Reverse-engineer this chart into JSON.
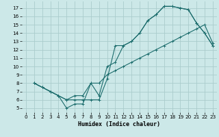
{
  "xlabel": "Humidex (Indice chaleur)",
  "background_color": "#cce8e8",
  "grid_color": "#aacccc",
  "line_color": "#1a6b6b",
  "xlim": [
    -0.5,
    23.5
  ],
  "ylim": [
    4.5,
    17.8
  ],
  "xticks": [
    0,
    1,
    2,
    3,
    4,
    5,
    6,
    7,
    8,
    9,
    10,
    11,
    12,
    13,
    14,
    15,
    16,
    17,
    18,
    19,
    20,
    21,
    22,
    23
  ],
  "yticks": [
    5,
    6,
    7,
    8,
    9,
    10,
    11,
    12,
    13,
    14,
    15,
    16,
    17
  ],
  "line1_x": [
    1,
    2,
    3,
    4,
    5,
    6,
    7,
    8,
    9,
    10,
    11,
    12,
    13,
    14,
    15,
    16,
    17,
    18,
    19,
    20,
    21,
    22,
    23
  ],
  "line1_y": [
    8,
    7.5,
    7,
    6.5,
    6,
    6,
    6,
    6,
    6,
    8.5,
    12.5,
    12.5,
    13,
    14,
    15.5,
    16.2,
    17.2,
    17.2,
    17.0,
    16.8,
    15.2,
    14.0,
    12.5
  ],
  "line2_x": [
    1,
    2,
    3,
    4,
    5,
    6,
    7,
    8,
    9,
    10,
    11,
    12,
    13,
    14,
    15,
    16,
    17,
    18,
    19,
    20,
    21,
    22,
    23
  ],
  "line2_y": [
    8,
    7.5,
    7,
    6.5,
    5,
    5.5,
    5.5,
    8,
    6.5,
    10,
    10.5,
    12.5,
    13,
    14,
    15.5,
    16.2,
    17.2,
    17.2,
    17.0,
    16.8,
    15.2,
    14.0,
    12.5
  ],
  "line3_x": [
    1,
    2,
    3,
    4,
    5,
    6,
    7,
    8,
    9,
    10,
    11,
    12,
    13,
    14,
    15,
    16,
    17,
    18,
    19,
    20,
    21,
    22,
    23
  ],
  "line3_y": [
    8,
    7.5,
    7,
    6.5,
    6,
    6.5,
    6.5,
    8,
    8,
    9,
    9.5,
    10,
    10.5,
    11,
    11.5,
    12,
    12.5,
    13,
    13.5,
    14,
    14.5,
    15,
    12.8
  ],
  "xlabel_fontsize": 6.0,
  "tick_fontsize": 5.2,
  "linewidth": 0.8,
  "markersize": 2.5
}
